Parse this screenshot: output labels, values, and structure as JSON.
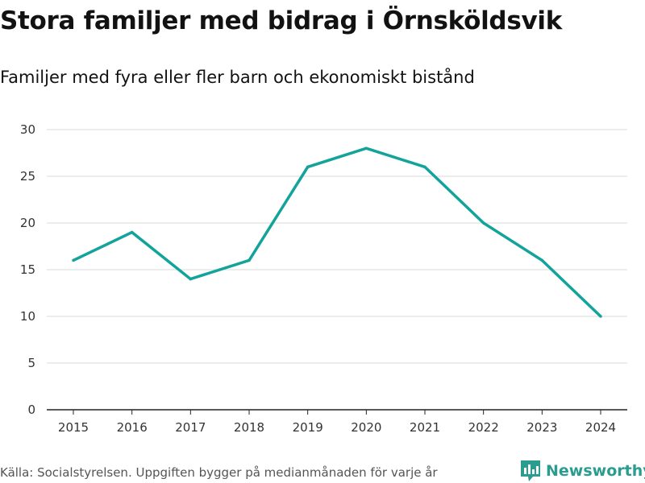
{
  "header": {
    "title": "Stora familjer med bidrag i Örnsköldsvik",
    "subtitle": "Familjer med fyra eller fler barn och ekonomiskt bistånd"
  },
  "footer": {
    "source": "Källa: Socialstyrelsen. Uppgiften bygger på medianmånaden för varje år",
    "brand": "Newsworthy",
    "brand_icon": "bar-chart-icon"
  },
  "colors": {
    "line": "#12a39a",
    "grid": "#d9d9d9",
    "axis": "#222222",
    "brand": "#2a9d8f"
  },
  "chart_data": {
    "type": "line",
    "title": "Stora familjer med bidrag i Örnsköldsvik",
    "subtitle": "Familjer med fyra eller fler barn och ekonomiskt bistånd",
    "xlabel": "",
    "ylabel": "",
    "x": [
      "2015",
      "2016",
      "2017",
      "2018",
      "2019",
      "2020",
      "2021",
      "2022",
      "2023",
      "2024"
    ],
    "series": [
      {
        "name": "Familjer",
        "values": [
          16,
          19,
          14,
          16,
          26,
          28,
          26,
          20,
          16,
          10
        ]
      }
    ],
    "ylim": [
      0,
      30
    ],
    "yticks": [
      0,
      5,
      10,
      15,
      20,
      25,
      30
    ],
    "grid": true,
    "legend": "none"
  }
}
